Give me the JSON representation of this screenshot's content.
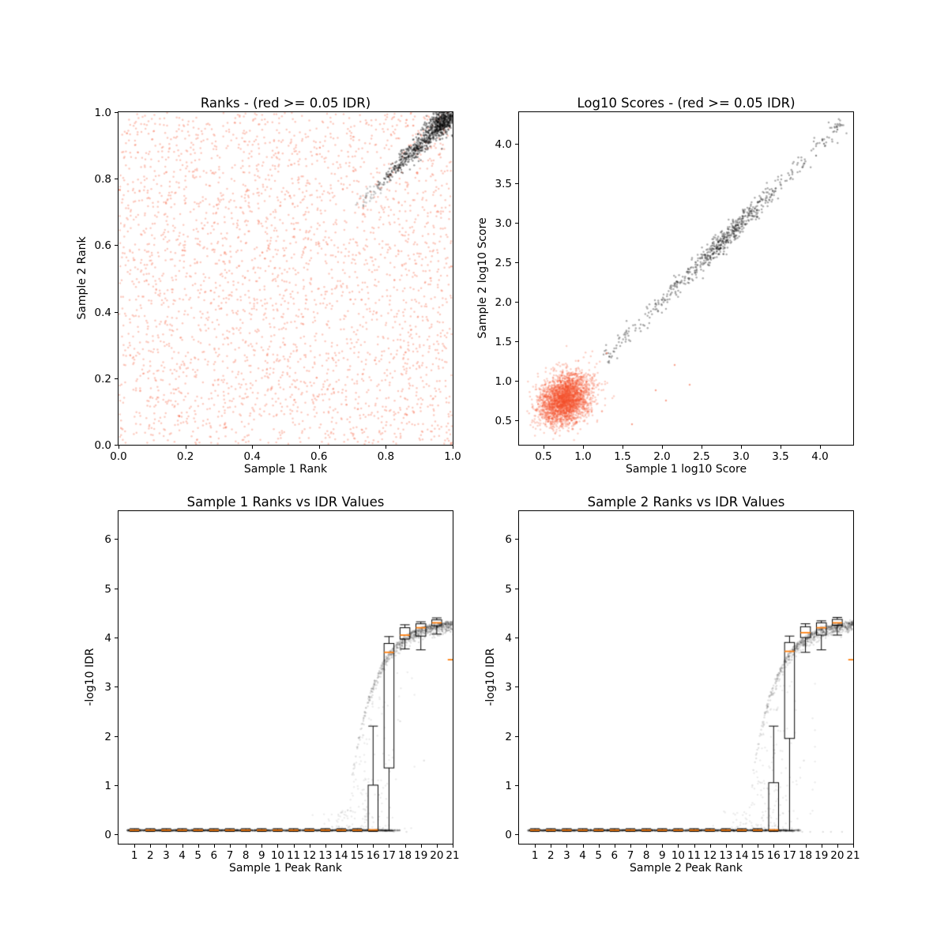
{
  "figure": {
    "background": "#ffffff",
    "point_colors": {
      "reproducible": "#000000",
      "irreproducible_red": "#f4502c",
      "box_line": "#000000",
      "box_median_orange": "#ff7f0e"
    },
    "legend_note": "red >= 0.05 IDR"
  },
  "chart_data": [
    {
      "id": "ranks-scatter",
      "type": "scatter",
      "title": "Ranks - (red >= 0.05 IDR)",
      "xlabel": "Sample 1 Rank",
      "ylabel": "Sample 2 Rank",
      "xlim": [
        0,
        1
      ],
      "ylim": [
        0,
        1
      ],
      "xticks": {
        "values": [
          0.0,
          0.2,
          0.4,
          0.6,
          0.8,
          1.0
        ],
        "labels": [
          "0.0",
          "0.2",
          "0.4",
          "0.6",
          "0.8",
          "1.0"
        ]
      },
      "yticks": {
        "values": [
          0.0,
          0.2,
          0.4,
          0.6,
          0.8,
          1.0
        ],
        "labels": [
          "0.0",
          "0.2",
          "0.4",
          "0.6",
          "0.8",
          "1.0"
        ]
      },
      "series": [
        {
          "name": "irreproducible (IDR >= 0.05)",
          "kind": "uniform",
          "n": 3000,
          "color": "#f4502c",
          "alpha": 0.3,
          "x": [
            0.002,
            0.998
          ],
          "y": [
            0.002,
            0.998
          ],
          "seed": 11
        },
        {
          "name": "reproducible diagonal",
          "kind": "diag",
          "n": 650,
          "color": "#000000",
          "alpha": 0.38,
          "t": [
            0.775,
            0.998
          ],
          "pow": 0.5,
          "widen": [
            0.006,
            0.028
          ],
          "seed": 12
        },
        {
          "name": "reproducible tip cluster",
          "kind": "diag",
          "n": 300,
          "color": "#000000",
          "alpha": 0.35,
          "t": [
            0.95,
            0.999
          ],
          "pow": 0.7,
          "widen": [
            0.014,
            0.03
          ],
          "seed": 13
        },
        {
          "name": "transition grey",
          "kind": "diag",
          "n": 45,
          "color": "#555555",
          "alpha": 0.3,
          "t": [
            0.72,
            0.79
          ],
          "pow": 1.0,
          "widen": [
            0.01,
            0.012
          ],
          "seed": 14
        }
      ]
    },
    {
      "id": "log10-scores-scatter",
      "type": "scatter",
      "title": "Log10 Scores - (red >= 0.05 IDR)",
      "xlabel": "Sample 1 log10 Score",
      "ylabel": "Sample 2 log10 Score",
      "xlim": [
        0.19,
        4.42
      ],
      "ylim": [
        0.19,
        4.4
      ],
      "xticks": {
        "values": [
          0.5,
          1.0,
          1.5,
          2.0,
          2.5,
          3.0,
          3.5,
          4.0
        ],
        "labels": [
          "0.5",
          "1.0",
          "1.5",
          "2.0",
          "2.5",
          "3.0",
          "3.5",
          "4.0"
        ]
      },
      "yticks": {
        "values": [
          0.5,
          1.0,
          1.5,
          2.0,
          2.5,
          3.0,
          3.5,
          4.0
        ],
        "labels": [
          "0.5",
          "1.0",
          "1.5",
          "2.0",
          "2.5",
          "3.0",
          "3.5",
          "4.0"
        ]
      },
      "series": [
        {
          "name": "irreproducible blob",
          "kind": "gauss",
          "n": 2900,
          "color": "#f4502c",
          "alpha": 0.27,
          "cx": 0.77,
          "cy": 0.77,
          "sx": 0.165,
          "sy": 0.165,
          "corr": 0.25,
          "clip": [
            0.21,
            4.38
          ],
          "seed": 21
        },
        {
          "name": "reproducible diagonal",
          "kind": "mixdiag",
          "n": 680,
          "color": "#000000",
          "alpha": 0.33,
          "gfrac": 0.6,
          "gmean": 2.82,
          "gsd": 0.3,
          "u": [
            1.28,
            4.28
          ],
          "jitter": 0.055,
          "seed": 22
        },
        {
          "name": "red outliers",
          "kind": "points",
          "color": "#f4502c",
          "alpha": 0.5,
          "pts": [
            [
              2.16,
              1.2
            ],
            [
              1.92,
              0.88
            ],
            [
              2.35,
              0.95
            ],
            [
              1.62,
              0.45
            ],
            [
              1.3,
              1.35
            ],
            [
              2.05,
              0.75
            ]
          ]
        },
        {
          "name": "black outliers",
          "kind": "points",
          "color": "#000000",
          "alpha": 0.45,
          "pts": [
            [
              4.22,
              4.18
            ],
            [
              4.05,
              4.0
            ],
            [
              3.95,
              3.85
            ]
          ]
        }
      ]
    },
    {
      "id": "sample1-rank-vs-idr",
      "type": "box+scatter",
      "title": "Sample 1 Ranks vs IDR Values",
      "xlabel": "Sample 1 Peak Rank",
      "ylabel": "-log10 IDR",
      "xlim": [
        0,
        21
      ],
      "ylim": [
        -0.19,
        6.57
      ],
      "xticks": {
        "values": [
          1,
          2,
          3,
          4,
          5,
          6,
          7,
          8,
          9,
          10,
          11,
          12,
          13,
          14,
          15,
          16,
          17,
          18,
          19,
          20,
          21
        ],
        "labels": [
          "1",
          "2",
          "3",
          "4",
          "5",
          "6",
          "7",
          "8",
          "9",
          "10",
          "11",
          "12",
          "13",
          "14",
          "15",
          "16",
          "17",
          "18",
          "19",
          "20",
          "21"
        ]
      },
      "yticks": {
        "values": [
          0,
          1,
          2,
          3,
          4,
          5,
          6
        ],
        "labels": [
          "0",
          "1",
          "2",
          "3",
          "4",
          "5",
          "6"
        ]
      },
      "series": [
        {
          "name": "low idr band",
          "kind": "flat",
          "n": 2900,
          "color": "#000000",
          "alpha": 0.09,
          "x": [
            0.55,
            16.9
          ],
          "y0": 0.082,
          "jit": 0.007,
          "seed": 31
        },
        {
          "name": "band fade tail",
          "kind": "flat",
          "n": 80,
          "color": "#000000",
          "alpha": 0.07,
          "x": [
            16.9,
            17.7
          ],
          "y0": 0.082,
          "jit": 0.007,
          "seed": 34
        },
        {
          "name": "saturating arc",
          "kind": "arc",
          "n": 850,
          "color": "#000000",
          "alpha": 0.12,
          "x": [
            14.55,
            21.4
          ],
          "xpow": 0.6,
          "cap": 4.38,
          "x0": 14.19,
          "tau": 1.51,
          "below": 0.1,
          "seed": 32
        },
        {
          "name": "transition cloud",
          "kind": "cloud",
          "n": 170,
          "color": "#000000",
          "alpha": 0.08,
          "xc": 15.6,
          "xsd": 1.3,
          "xclip": [
            12.2,
            18.6
          ],
          "ypow": 1.6,
          "cap": 4.38,
          "x0": 14.19,
          "tau": 1.51,
          "seed": 33
        },
        {
          "name": "stray points",
          "kind": "points",
          "color": "#000000",
          "alpha": 0.12,
          "pts": [
            [
              19.2,
              1.5
            ],
            [
              17.7,
              2.3
            ],
            [
              17.3,
              0.05
            ],
            [
              18.1,
              0.05
            ]
          ]
        }
      ],
      "boxplot": {
        "width": 0.62,
        "capw": 0.3,
        "line_color": "#000000",
        "median_color": "#ff7f0e",
        "stats": [
          {
            "pos": 1,
            "med": 0.086,
            "q1": 0.078,
            "q3": 0.096,
            "wlo": 0.06,
            "whi": 0.115
          },
          {
            "pos": 2,
            "med": 0.086,
            "q1": 0.078,
            "q3": 0.096,
            "wlo": 0.06,
            "whi": 0.115
          },
          {
            "pos": 3,
            "med": 0.086,
            "q1": 0.078,
            "q3": 0.096,
            "wlo": 0.06,
            "whi": 0.115
          },
          {
            "pos": 4,
            "med": 0.086,
            "q1": 0.078,
            "q3": 0.096,
            "wlo": 0.06,
            "whi": 0.115
          },
          {
            "pos": 5,
            "med": 0.086,
            "q1": 0.078,
            "q3": 0.096,
            "wlo": 0.06,
            "whi": 0.115
          },
          {
            "pos": 6,
            "med": 0.086,
            "q1": 0.078,
            "q3": 0.096,
            "wlo": 0.06,
            "whi": 0.115
          },
          {
            "pos": 7,
            "med": 0.086,
            "q1": 0.078,
            "q3": 0.096,
            "wlo": 0.06,
            "whi": 0.115
          },
          {
            "pos": 8,
            "med": 0.086,
            "q1": 0.078,
            "q3": 0.096,
            "wlo": 0.06,
            "whi": 0.115
          },
          {
            "pos": 9,
            "med": 0.086,
            "q1": 0.078,
            "q3": 0.096,
            "wlo": 0.06,
            "whi": 0.115
          },
          {
            "pos": 10,
            "med": 0.086,
            "q1": 0.078,
            "q3": 0.096,
            "wlo": 0.06,
            "whi": 0.115
          },
          {
            "pos": 11,
            "med": 0.086,
            "q1": 0.078,
            "q3": 0.096,
            "wlo": 0.06,
            "whi": 0.115
          },
          {
            "pos": 12,
            "med": 0.086,
            "q1": 0.078,
            "q3": 0.096,
            "wlo": 0.06,
            "whi": 0.115
          },
          {
            "pos": 13,
            "med": 0.086,
            "q1": 0.078,
            "q3": 0.096,
            "wlo": 0.06,
            "whi": 0.115
          },
          {
            "pos": 14,
            "med": 0.086,
            "q1": 0.078,
            "q3": 0.096,
            "wlo": 0.06,
            "whi": 0.115
          },
          {
            "pos": 15,
            "med": 0.086,
            "q1": 0.078,
            "q3": 0.096,
            "wlo": 0.06,
            "whi": 0.115
          },
          {
            "pos": 16,
            "med": 0.09,
            "q1": 0.078,
            "q3": 1.0,
            "wlo": 0.06,
            "whi": 2.2
          },
          {
            "pos": 17,
            "med": 3.7,
            "q1": 1.35,
            "q3": 3.88,
            "wlo": 0.07,
            "whi": 4.02
          },
          {
            "pos": 18,
            "med": 4.05,
            "q1": 3.97,
            "q3": 4.2,
            "wlo": 3.77,
            "whi": 4.26
          },
          {
            "pos": 19,
            "med": 4.2,
            "q1": 4.03,
            "q3": 4.28,
            "wlo": 3.75,
            "whi": 4.32
          },
          {
            "pos": 20,
            "med": 4.3,
            "q1": 4.24,
            "q3": 4.36,
            "wlo": 4.07,
            "whi": 4.4
          },
          {
            "pos": 21,
            "med": 3.55
          }
        ]
      }
    },
    {
      "id": "sample2-rank-vs-idr",
      "type": "box+scatter",
      "title": "Sample 2 Ranks vs IDR Values",
      "xlabel": "Sample 2 Peak Rank",
      "ylabel": "-log10 IDR",
      "xlim": [
        0,
        21
      ],
      "ylim": [
        -0.19,
        6.57
      ],
      "xticks": {
        "values": [
          1,
          2,
          3,
          4,
          5,
          6,
          7,
          8,
          9,
          10,
          11,
          12,
          13,
          14,
          15,
          16,
          17,
          18,
          19,
          20,
          21
        ],
        "labels": [
          "1",
          "2",
          "3",
          "4",
          "5",
          "6",
          "7",
          "8",
          "9",
          "10",
          "11",
          "12",
          "13",
          "14",
          "15",
          "16",
          "17",
          "18",
          "19",
          "20",
          "21"
        ]
      },
      "yticks": {
        "values": [
          0,
          1,
          2,
          3,
          4,
          5,
          6
        ],
        "labels": [
          "0",
          "1",
          "2",
          "3",
          "4",
          "5",
          "6"
        ]
      },
      "series": [
        {
          "name": "low idr band",
          "kind": "flat",
          "n": 2900,
          "color": "#000000",
          "alpha": 0.09,
          "x": [
            0.55,
            16.9
          ],
          "y0": 0.082,
          "jit": 0.007,
          "seed": 41
        },
        {
          "name": "band fade tail",
          "kind": "flat",
          "n": 80,
          "color": "#000000",
          "alpha": 0.07,
          "x": [
            16.9,
            17.7
          ],
          "y0": 0.082,
          "jit": 0.007,
          "seed": 44
        },
        {
          "name": "saturating arc",
          "kind": "arc",
          "n": 850,
          "color": "#000000",
          "alpha": 0.12,
          "x": [
            14.55,
            21.4
          ],
          "xpow": 0.6,
          "cap": 4.38,
          "x0": 14.19,
          "tau": 1.51,
          "below": 0.1,
          "seed": 42
        },
        {
          "name": "transition cloud",
          "kind": "cloud",
          "n": 170,
          "color": "#000000",
          "alpha": 0.08,
          "xc": 15.6,
          "xsd": 1.3,
          "xclip": [
            12.2,
            18.6
          ],
          "ypow": 1.6,
          "cap": 4.38,
          "x0": 14.19,
          "tau": 1.51,
          "seed": 43
        },
        {
          "name": "stray points",
          "kind": "points",
          "color": "#000000",
          "alpha": 0.12,
          "pts": [
            [
              17.9,
              1.5
            ],
            [
              17.2,
              0.05
            ],
            [
              17.8,
              0.05
            ],
            [
              18.3,
              0.05
            ],
            [
              19.1,
              0.05
            ],
            [
              19.6,
              0.05
            ],
            [
              20.3,
              0.05
            ]
          ]
        }
      ],
      "boxplot": {
        "width": 0.62,
        "capw": 0.3,
        "line_color": "#000000",
        "median_color": "#ff7f0e",
        "stats": [
          {
            "pos": 1,
            "med": 0.086,
            "q1": 0.078,
            "q3": 0.096,
            "wlo": 0.06,
            "whi": 0.115
          },
          {
            "pos": 2,
            "med": 0.086,
            "q1": 0.078,
            "q3": 0.096,
            "wlo": 0.06,
            "whi": 0.115
          },
          {
            "pos": 3,
            "med": 0.086,
            "q1": 0.078,
            "q3": 0.096,
            "wlo": 0.06,
            "whi": 0.115
          },
          {
            "pos": 4,
            "med": 0.086,
            "q1": 0.078,
            "q3": 0.096,
            "wlo": 0.06,
            "whi": 0.115
          },
          {
            "pos": 5,
            "med": 0.086,
            "q1": 0.078,
            "q3": 0.096,
            "wlo": 0.06,
            "whi": 0.115
          },
          {
            "pos": 6,
            "med": 0.086,
            "q1": 0.078,
            "q3": 0.096,
            "wlo": 0.06,
            "whi": 0.115
          },
          {
            "pos": 7,
            "med": 0.086,
            "q1": 0.078,
            "q3": 0.096,
            "wlo": 0.06,
            "whi": 0.115
          },
          {
            "pos": 8,
            "med": 0.086,
            "q1": 0.078,
            "q3": 0.096,
            "wlo": 0.06,
            "whi": 0.115
          },
          {
            "pos": 9,
            "med": 0.086,
            "q1": 0.078,
            "q3": 0.096,
            "wlo": 0.06,
            "whi": 0.115
          },
          {
            "pos": 10,
            "med": 0.086,
            "q1": 0.078,
            "q3": 0.096,
            "wlo": 0.06,
            "whi": 0.115
          },
          {
            "pos": 11,
            "med": 0.086,
            "q1": 0.078,
            "q3": 0.096,
            "wlo": 0.06,
            "whi": 0.115
          },
          {
            "pos": 12,
            "med": 0.086,
            "q1": 0.078,
            "q3": 0.096,
            "wlo": 0.06,
            "whi": 0.115
          },
          {
            "pos": 13,
            "med": 0.086,
            "q1": 0.078,
            "q3": 0.096,
            "wlo": 0.06,
            "whi": 0.115
          },
          {
            "pos": 14,
            "med": 0.086,
            "q1": 0.078,
            "q3": 0.096,
            "wlo": 0.06,
            "whi": 0.115
          },
          {
            "pos": 15,
            "med": 0.086,
            "q1": 0.078,
            "q3": 0.096,
            "wlo": 0.06,
            "whi": 0.115
          },
          {
            "pos": 16,
            "med": 0.09,
            "q1": 0.078,
            "q3": 1.05,
            "wlo": 0.06,
            "whi": 2.2
          },
          {
            "pos": 17,
            "med": 3.72,
            "q1": 1.95,
            "q3": 3.9,
            "wlo": 0.07,
            "whi": 4.03
          },
          {
            "pos": 18,
            "med": 4.1,
            "q1": 4.0,
            "q3": 4.22,
            "wlo": 3.7,
            "whi": 4.28
          },
          {
            "pos": 19,
            "med": 4.2,
            "q1": 4.05,
            "q3": 4.3,
            "wlo": 3.75,
            "whi": 4.34
          },
          {
            "pos": 20,
            "med": 4.3,
            "q1": 4.25,
            "q3": 4.37,
            "wlo": 4.05,
            "whi": 4.41
          },
          {
            "pos": 21,
            "med": 3.55
          }
        ]
      }
    }
  ]
}
